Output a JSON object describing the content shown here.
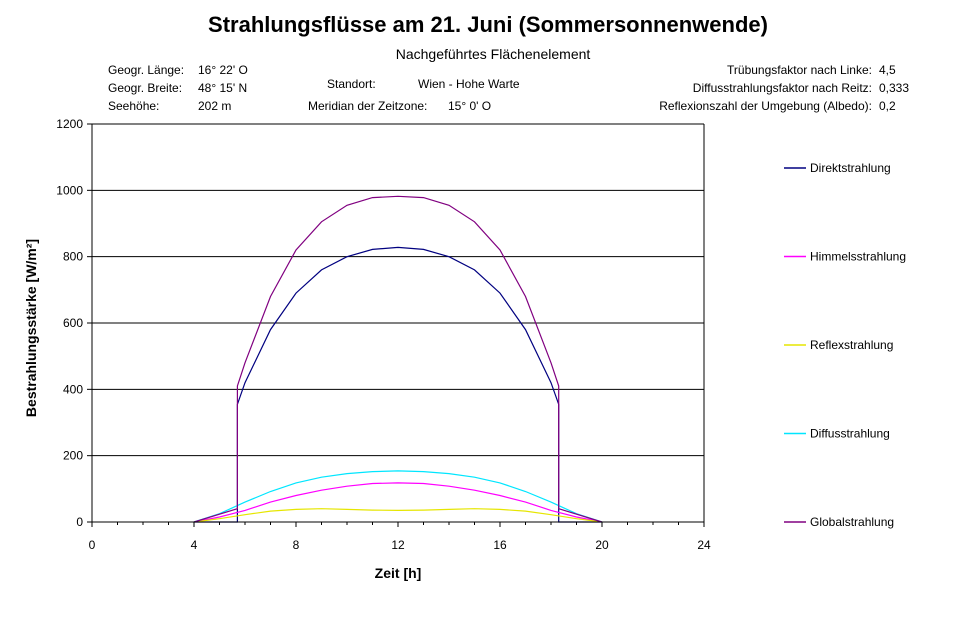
{
  "header": {
    "title": "Strahlungsflüsse am 21. Juni (Sommersonnenwende)",
    "subtitle": "Nachgeführtes Flächenelement"
  },
  "info": {
    "laenge_label": "Geogr. Länge:",
    "laenge_value": "16° 22' O",
    "breite_label": "Geogr. Breite:",
    "breite_value": "48° 15' N",
    "seehoehe_label": "Seehöhe:",
    "seehoehe_value": "202 m",
    "standort_label": "Standort:",
    "standort_value": "Wien - Hohe Warte",
    "meridian_label": "Meridian der Zeitzone:",
    "meridian_value": "15° 0' O",
    "truebung_label": "Trübungsfaktor nach Linke:",
    "truebung_value": "4,5",
    "diffus_label": "Diffusstrahlungsfaktor nach Reitz:",
    "diffus_value": "0,333",
    "albedo_label": "Reflexionszahl der Umgebung (Albedo):",
    "albedo_value": "0,2"
  },
  "chart_data": {
    "type": "line",
    "xlabel": "Zeit [h]",
    "ylabel": "Bestrahlungsstärke [W/m²]",
    "xlim": [
      0,
      24
    ],
    "ylim": [
      0,
      1200
    ],
    "xticks": [
      "0",
      "4",
      "8",
      "12",
      "16",
      "20",
      "24"
    ],
    "yticks": [
      "0",
      "200",
      "400",
      "600",
      "800",
      "1000",
      "1200"
    ],
    "grid": "horizontal",
    "legend_position": "right",
    "series": [
      {
        "name": "Direktstrahlung",
        "color": "#000080",
        "x": [
          4,
          5.7,
          5.7,
          6,
          7,
          8,
          9,
          10,
          11,
          12,
          13,
          14,
          15,
          16,
          17,
          18,
          18.3,
          18.3,
          20
        ],
        "y": [
          0,
          0,
          355,
          420,
          580,
          690,
          760,
          800,
          822,
          828,
          822,
          800,
          760,
          690,
          580,
          420,
          355,
          0,
          0
        ]
      },
      {
        "name": "Himmelsstrahlung",
        "color": "#ff00ff",
        "x": [
          4,
          5,
          6,
          7,
          8,
          9,
          10,
          11,
          12,
          13,
          14,
          15,
          16,
          17,
          18,
          19,
          20
        ],
        "y": [
          0,
          15,
          35,
          60,
          80,
          96,
          108,
          116,
          118,
          116,
          108,
          96,
          80,
          60,
          35,
          15,
          0
        ]
      },
      {
        "name": "Reflexstrahlung",
        "color": "#e6e600",
        "x": [
          4,
          5,
          6,
          7,
          8,
          9,
          10,
          11,
          12,
          13,
          14,
          15,
          16,
          17,
          18,
          19,
          20
        ],
        "y": [
          0,
          10,
          22,
          33,
          38,
          40,
          38,
          36,
          35,
          36,
          38,
          40,
          38,
          33,
          22,
          10,
          0
        ]
      },
      {
        "name": "Diffusstrahlung",
        "color": "#00e6ff",
        "x": [
          4,
          5,
          6,
          7,
          8,
          9,
          10,
          11,
          12,
          13,
          14,
          15,
          16,
          17,
          18,
          19,
          20
        ],
        "y": [
          0,
          25,
          60,
          92,
          118,
          135,
          146,
          152,
          154,
          152,
          146,
          135,
          118,
          92,
          60,
          25,
          0
        ]
      },
      {
        "name": "Globalstrahlung",
        "color": "#800080",
        "x": [
          4,
          5.7,
          5.7,
          6,
          7,
          8,
          9,
          10,
          11,
          12,
          13,
          14,
          15,
          16,
          17,
          18,
          18.3,
          18.3,
          20
        ],
        "y": [
          0,
          40,
          410,
          480,
          680,
          820,
          905,
          955,
          978,
          982,
          978,
          955,
          905,
          820,
          680,
          480,
          410,
          40,
          0
        ]
      }
    ]
  }
}
